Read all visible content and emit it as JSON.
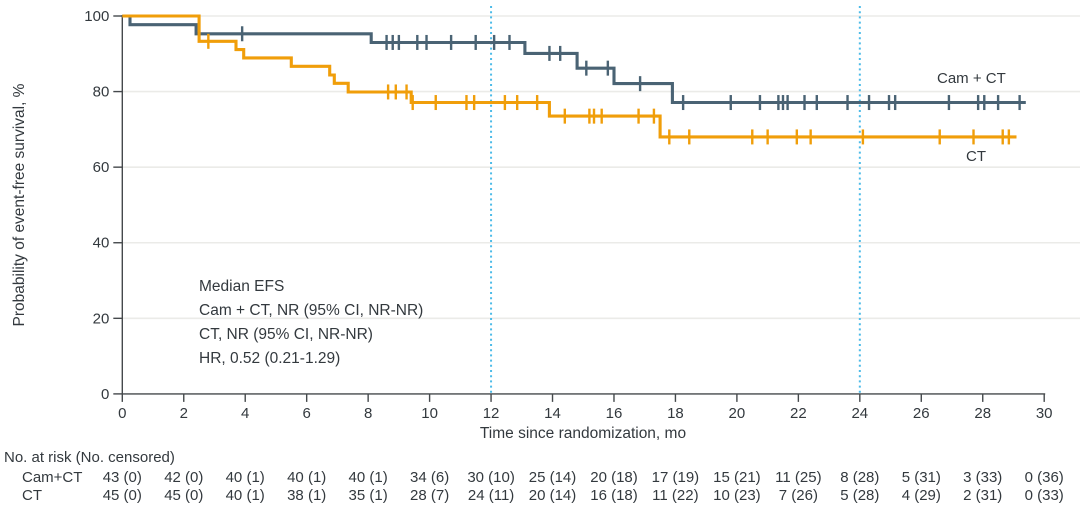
{
  "figure": {
    "y_axis_title": "Probability of event-free survival, %",
    "x_axis_title": "Time since randomization, mo",
    "annotation": [
      "Median EFS",
      "Cam + CT, NR (95% CI, NR-NR)",
      "CT, NR (95% CI, NR-NR)",
      "HR, 0.52 (0.21-1.29)"
    ]
  },
  "chart_data": {
    "type": "line",
    "subtype": "kaplan-meier-step",
    "title": "",
    "xlabel": "Time since randomization, mo",
    "ylabel": "Probability of event-free survival, %",
    "xlim": [
      0,
      30
    ],
    "ylim": [
      0,
      100
    ],
    "xticks": [
      0,
      2,
      4,
      6,
      8,
      10,
      12,
      14,
      16,
      18,
      20,
      22,
      24,
      26,
      28,
      30
    ],
    "yticks": [
      0,
      20,
      40,
      60,
      80,
      100
    ],
    "grid": "horizontal",
    "reference_lines_x": [
      12,
      24
    ],
    "series": [
      {
        "name": "Cam + CT",
        "color": "#4a6374",
        "steps": [
          [
            0,
            100
          ],
          [
            0.25,
            97.7
          ],
          [
            2.4,
            95.3
          ],
          [
            8.1,
            93.0
          ],
          [
            13.1,
            90.1
          ],
          [
            14.8,
            86.2
          ],
          [
            16.0,
            82.1
          ],
          [
            17.9,
            77.1
          ]
        ],
        "end": 29.4,
        "censors": [
          3.9,
          8.6,
          8.8,
          9.0,
          9.6,
          9.9,
          10.7,
          11.5,
          12.1,
          12.6,
          13.9,
          14.25,
          15.1,
          15.8,
          16.85,
          18.25,
          19.8,
          20.75,
          21.35,
          21.5,
          21.65,
          22.2,
          22.6,
          23.6,
          24.3,
          24.95,
          25.15,
          26.9,
          27.85,
          28.05,
          28.5,
          29.2
        ]
      },
      {
        "name": "CT",
        "color": "#f09e0a",
        "steps": [
          [
            0,
            100
          ],
          [
            2.5,
            93.3
          ],
          [
            3.7,
            91.1
          ],
          [
            3.95,
            88.9
          ],
          [
            5.5,
            86.7
          ],
          [
            6.75,
            84.4
          ],
          [
            6.9,
            82.2
          ],
          [
            7.35,
            79.9
          ],
          [
            9.4,
            77.1
          ],
          [
            13.9,
            73.5
          ],
          [
            17.5,
            68.0
          ]
        ],
        "end": 29.1,
        "censors": [
          2.8,
          8.65,
          8.9,
          9.25,
          9.45,
          10.2,
          11.2,
          11.45,
          12.45,
          12.85,
          13.5,
          14.4,
          15.2,
          15.35,
          15.6,
          16.8,
          17.3,
          17.8,
          18.45,
          20.5,
          21.0,
          21.95,
          22.4,
          24.1,
          26.6,
          27.7,
          28.65,
          28.85
        ]
      }
    ],
    "annotation_text": [
      "Median EFS",
      "Cam + CT, NR (95% CI, NR-NR)",
      "CT, NR (95% CI, NR-NR)",
      "HR, 0.52 (0.21-1.29)"
    ],
    "legend_position": "labels-at-line-ends"
  },
  "risk_table": {
    "header": "No. at risk (No. censored)",
    "columns": [
      0,
      2,
      4,
      6,
      8,
      10,
      12,
      14,
      16,
      18,
      20,
      22,
      24,
      26,
      28,
      30
    ],
    "rows": [
      {
        "label": "Cam+CT",
        "values": [
          "43 (0)",
          "42 (0)",
          "40 (1)",
          "40 (1)",
          "40 (1)",
          "34 (6)",
          "30 (10)",
          "25 (14)",
          "20 (18)",
          "17 (19)",
          "15 (21)",
          "11 (25)",
          "8 (28)",
          "5 (31)",
          "3 (33)",
          "0 (36)"
        ]
      },
      {
        "label": "CT",
        "values": [
          "45 (0)",
          "45 (0)",
          "40 (1)",
          "38 (1)",
          "35 (1)",
          "28 (7)",
          "24 (11)",
          "20 (14)",
          "16 (18)",
          "11 (22)",
          "10 (23)",
          "7 (26)",
          "5 (28)",
          "4 (29)",
          "2 (31)",
          "0 (33)"
        ]
      }
    ]
  },
  "colors": {
    "cam_ct_line": "#4a6374",
    "ct_line": "#f09e0a",
    "reference_line": "#4cbbe8",
    "gridline": "#ebebe8",
    "axis": "#45494c",
    "text": "#33393e"
  }
}
